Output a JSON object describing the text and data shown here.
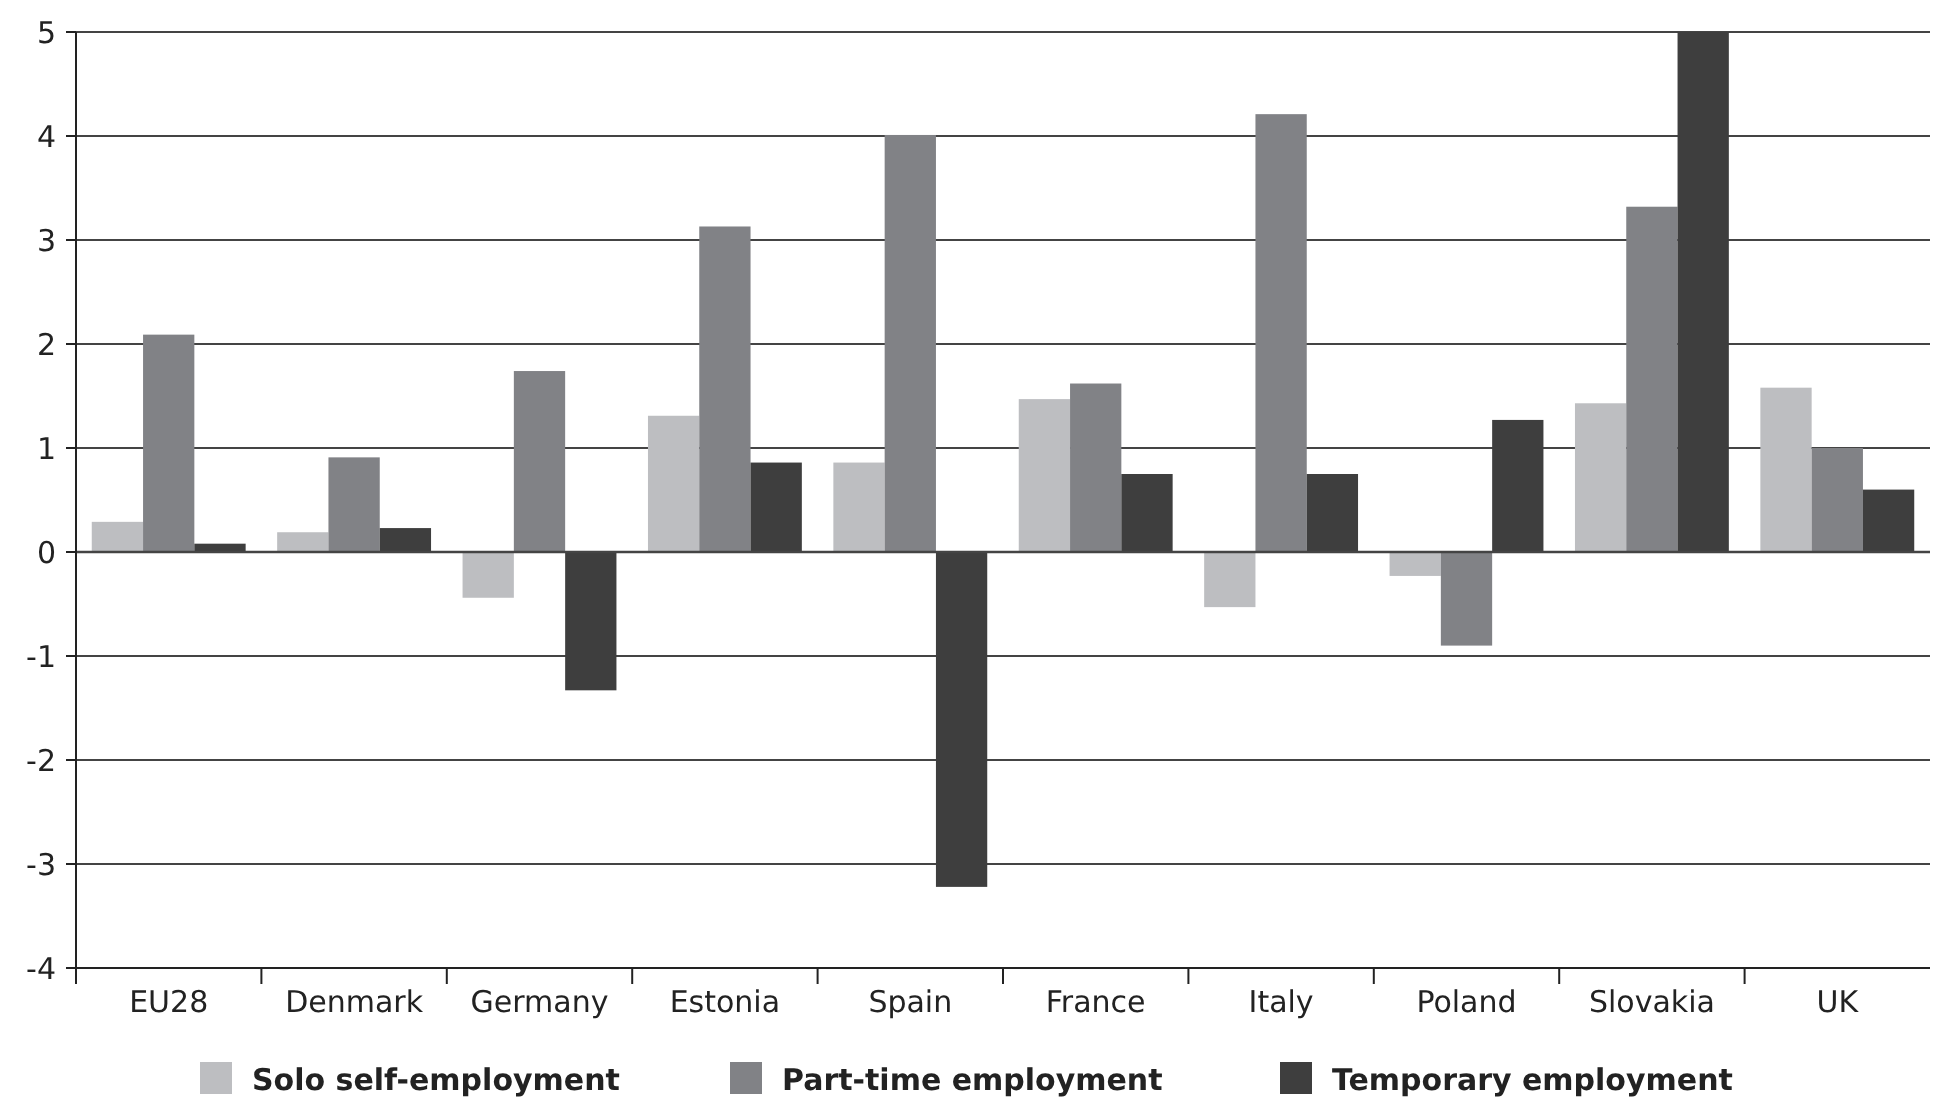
{
  "chart_data": {
    "type": "bar",
    "categories": [
      "EU28",
      "Denmark",
      "Germany",
      "Estonia",
      "Spain",
      "France",
      "Italy",
      "Poland",
      "Slovakia",
      "UK"
    ],
    "series": [
      {
        "name": "Solo self-employment",
        "color": "#bdbec1",
        "values": [
          0.29,
          0.19,
          -0.44,
          1.31,
          0.86,
          1.47,
          -0.53,
          -0.23,
          1.43,
          1.58
        ]
      },
      {
        "name": "Part-time employment",
        "color": "#818286",
        "values": [
          2.09,
          0.91,
          1.74,
          3.13,
          4.01,
          1.62,
          4.21,
          -0.9,
          3.32,
          1.0
        ]
      },
      {
        "name": "Temporary employment",
        "color": "#3e3e3e",
        "values": [
          0.08,
          0.23,
          -1.33,
          0.86,
          -3.22,
          0.75,
          0.75,
          1.27,
          5.0,
          0.6
        ]
      }
    ],
    "ylim": [
      -4,
      5
    ],
    "yticks": [
      -4,
      -3,
      -2,
      -1,
      0,
      1,
      2,
      3,
      4,
      5
    ],
    "grid": "y",
    "legend": "bottom"
  }
}
